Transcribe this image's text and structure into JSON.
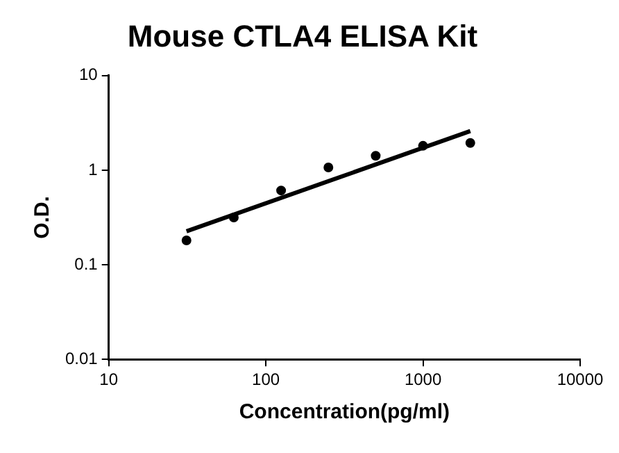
{
  "chart_data": {
    "type": "scatter",
    "title": "Mouse CTLA4 ELISA Kit",
    "xlabel": "Concentration(pg/ml)",
    "ylabel": "O.D.",
    "log": "xy",
    "grid": false,
    "legend": false,
    "marker": "circle",
    "xlim": [
      10,
      10000
    ],
    "xticks": [
      10,
      100,
      1000,
      10000
    ],
    "ylim": [
      0.01,
      10
    ],
    "yticks": [
      0.01,
      0.1,
      1,
      10
    ],
    "series": [
      {
        "color": "#000000",
        "x": [
          31.25,
          62.5,
          125,
          250,
          500,
          1000,
          2000
        ],
        "values": [
          0.181,
          0.316,
          0.61,
          1.07,
          1.42,
          1.81,
          1.94
        ]
      },
      {
        "type": "line",
        "color": "#000000",
        "marker": "none",
        "x": [
          31.25,
          2000
        ],
        "values": [
          0.226,
          2.59
        ]
      }
    ]
  }
}
